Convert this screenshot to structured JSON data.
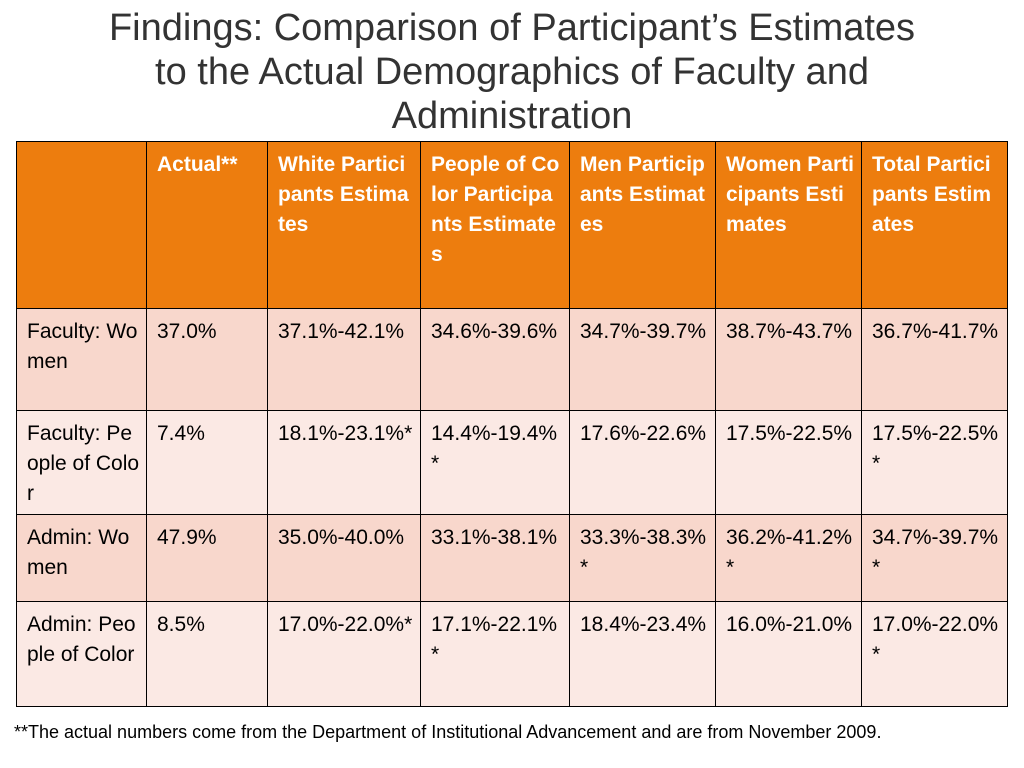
{
  "title": {
    "line1": "Findings: Comparison of Participant’s Estimates",
    "line2": "to the Actual Demographics of Faculty and",
    "line3": "Administration"
  },
  "table": {
    "headers": [
      "",
      "Actual**",
      "White Participants Estimates",
      "People of Color Participants Estimates",
      "Men Participants Estimates",
      "Women Participants Estimates",
      "Total Participants Estimates"
    ],
    "rows": [
      {
        "label": "Faculty: Women",
        "cells": [
          "37.0%",
          "37.1%-42.1%",
          "34.6%-39.6%",
          "34.7%-39.7%",
          "38.7%-43.7%",
          "36.7%-41.7%"
        ],
        "bold": [
          false,
          false,
          false,
          true,
          true,
          false
        ]
      },
      {
        "label": "Faculty: People of Color",
        "cells": [
          "7.4%",
          "18.1%-23.1%*",
          "14.4%-19.4%*",
          "17.6%-22.6%",
          "17.5%-22.5%",
          "17.5%-22.5%*"
        ],
        "bold": [
          false,
          true,
          true,
          false,
          false,
          false
        ]
      },
      {
        "label": "Admin: Women",
        "cells": [
          "47.9%",
          "35.0%-40.0%",
          "33.1%-38.1%",
          "33.3%-38.3%*",
          "36.2%-41.2%*",
          "34.7%-39.7%*"
        ],
        "bold": [
          false,
          false,
          false,
          true,
          true,
          false
        ]
      },
      {
        "label": "Admin: People of Color",
        "cells": [
          "8.5%",
          "17.0%-22.0%*",
          "17.1%-22.1%*",
          "18.4%-23.4%",
          "16.0%-21.0%",
          "17.0%-22.0%*"
        ],
        "bold": [
          false,
          true,
          true,
          false,
          false,
          false
        ]
      }
    ]
  },
  "footnote": "**The actual numbers come from the Department of Institutional Advancement and are from November 2009.",
  "colors": {
    "header_bg": "#ed7d0e",
    "row_dark": "#f8d7cc",
    "row_light": "#fbe9e4",
    "title_text": "#333333"
  }
}
